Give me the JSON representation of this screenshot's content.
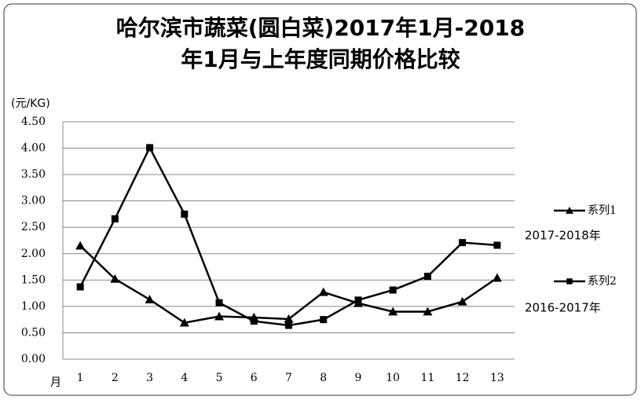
{
  "chart_data": {
    "type": "line",
    "title": "哈尔滨市蔬菜(圆白菜)2017年1月-2018\n年1月与上年度同期价格比较",
    "y_label": "(元/KG)",
    "x_label": "月",
    "categories": [
      "1",
      "2",
      "3",
      "4",
      "5",
      "6",
      "7",
      "8",
      "9",
      "10",
      "11",
      "12",
      "13"
    ],
    "series": [
      {
        "name": "系列1",
        "color": "#000000",
        "marker": "triangle",
        "values": [
          2.15,
          1.52,
          1.13,
          0.69,
          0.81,
          0.79,
          0.76,
          1.27,
          1.06,
          0.9,
          0.9,
          1.09,
          1.54
        ]
      },
      {
        "name": "系列2",
        "color": "#000000",
        "marker": "square",
        "values": [
          1.37,
          2.66,
          4.01,
          2.75,
          1.07,
          0.72,
          0.64,
          0.75,
          1.12,
          1.31,
          1.57,
          2.21,
          2.16
        ]
      }
    ],
    "annotations": [
      "2017-2018年",
      "2016-2017年"
    ],
    "ylim": [
      0,
      4.5
    ],
    "yticks": [
      {
        "value": 0,
        "label": "0.00"
      },
      {
        "value": 0.5,
        "label": "0.50"
      },
      {
        "value": 1,
        "label": "1.00"
      },
      {
        "value": 1.5,
        "label": "1.50"
      },
      {
        "value": 2,
        "label": "2.00"
      },
      {
        "value": 2.5,
        "label": "2.50"
      },
      {
        "value": 3,
        "label": "3.00"
      },
      {
        "value": 3.5,
        "label": "3.50"
      },
      {
        "value": 4,
        "label": "4.00"
      },
      {
        "value": 4.5,
        "label": "4.50"
      }
    ],
    "grid": true
  }
}
